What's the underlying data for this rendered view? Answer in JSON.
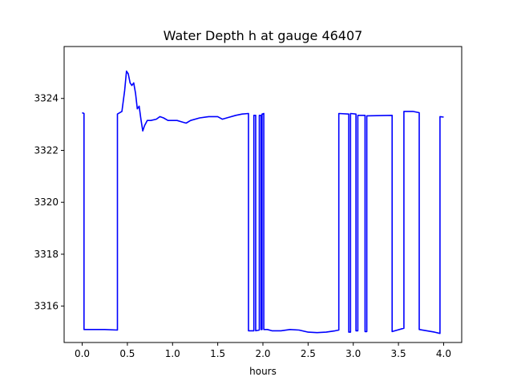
{
  "chart_data": {
    "type": "line",
    "title": "Water Depth h at gauge 46407",
    "xlabel": "hours",
    "ylabel": "",
    "xlim": [
      -0.2,
      4.2
    ],
    "ylim": [
      3314.6,
      3326.0
    ],
    "xticks": [
      0.0,
      0.5,
      1.0,
      1.5,
      2.0,
      2.5,
      3.0,
      3.5,
      4.0
    ],
    "xtick_labels": [
      "0.0",
      "0.5",
      "1.0",
      "1.5",
      "2.0",
      "2.5",
      "3.0",
      "3.5",
      "4.0"
    ],
    "yticks": [
      3316,
      3318,
      3320,
      3322,
      3324
    ],
    "ytick_labels": [
      "3316",
      "3318",
      "3320",
      "3322",
      "3324"
    ],
    "grid": false,
    "series": [
      {
        "color": "#0000ff",
        "x": [
          0.0,
          0.02,
          0.02,
          0.25,
          0.39,
          0.39,
          0.44,
          0.47,
          0.49,
          0.51,
          0.53,
          0.55,
          0.57,
          0.59,
          0.61,
          0.63,
          0.65,
          0.67,
          0.69,
          0.72,
          0.76,
          0.82,
          0.86,
          0.9,
          0.95,
          1.0,
          1.05,
          1.1,
          1.15,
          1.2,
          1.3,
          1.4,
          1.45,
          1.5,
          1.55,
          1.6,
          1.7,
          1.77,
          1.84,
          1.84,
          1.9,
          1.9,
          1.92,
          1.92,
          1.96,
          1.96,
          1.98,
          1.98,
          1.99,
          1.99,
          2.01,
          2.01,
          2.05,
          2.1,
          2.15,
          2.2,
          2.3,
          2.4,
          2.5,
          2.6,
          2.7,
          2.8,
          2.84,
          2.84,
          2.95,
          2.95,
          2.97,
          2.97,
          3.03,
          3.03,
          3.05,
          3.05,
          3.13,
          3.13,
          3.15,
          3.15,
          3.43,
          3.43,
          3.56,
          3.56,
          3.66,
          3.73,
          3.73,
          3.9,
          3.96,
          3.96,
          4.0
        ],
        "y": [
          3323.45,
          3323.42,
          3315.1,
          3315.1,
          3315.08,
          3323.4,
          3323.5,
          3324.3,
          3325.05,
          3324.95,
          3324.6,
          3324.5,
          3324.6,
          3324.2,
          3323.6,
          3323.7,
          3323.2,
          3322.75,
          3322.95,
          3323.15,
          3323.15,
          3323.2,
          3323.3,
          3323.25,
          3323.15,
          3323.15,
          3323.15,
          3323.1,
          3323.05,
          3323.15,
          3323.25,
          3323.3,
          3323.3,
          3323.3,
          3323.2,
          3323.25,
          3323.35,
          3323.4,
          3323.42,
          3315.05,
          3315.05,
          3323.35,
          3323.35,
          3315.05,
          3315.08,
          3323.35,
          3323.35,
          3315.1,
          3315.1,
          3323.4,
          3323.42,
          3315.1,
          3315.1,
          3315.05,
          3315.05,
          3315.05,
          3315.1,
          3315.08,
          3315.0,
          3314.98,
          3315.0,
          3315.05,
          3315.08,
          3323.42,
          3323.4,
          3315.0,
          3315.0,
          3323.42,
          3323.4,
          3315.05,
          3315.05,
          3323.35,
          3323.35,
          3315.02,
          3315.02,
          3323.33,
          3323.35,
          3315.02,
          3315.15,
          3323.5,
          3323.5,
          3323.45,
          3315.1,
          3315.0,
          3314.95,
          3323.3,
          3323.28
        ]
      }
    ]
  }
}
